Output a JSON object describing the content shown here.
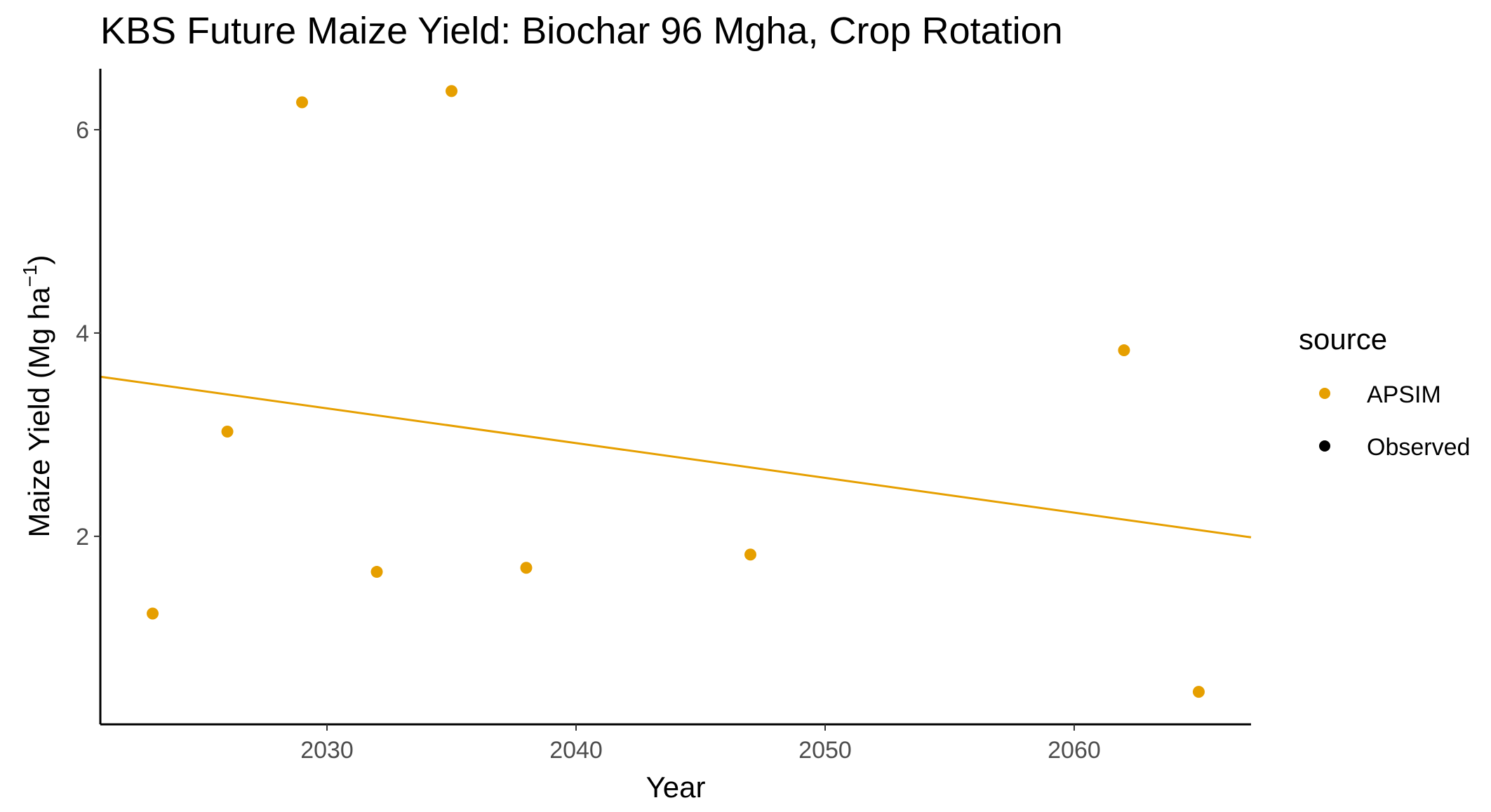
{
  "chart_data": {
    "type": "scatter",
    "title": "KBS Future Maize Yield:  Biochar 96 Mgha, Crop Rotation",
    "xlabel": "Year",
    "ylabel": "Maize Yield (Mg ha⁻¹)",
    "ylabel_parts": {
      "main": "Maize Yield (Mg ha",
      "sup": "−1",
      "close": ")"
    },
    "xlim": [
      2020.9,
      2067.1
    ],
    "ylim": [
      0.15,
      6.6
    ],
    "x_ticks": [
      2030,
      2040,
      2050,
      2060
    ],
    "y_ticks": [
      2,
      4,
      6
    ],
    "grid": false,
    "legend": {
      "title": "source",
      "position": "right",
      "entries": [
        {
          "label": "APSIM",
          "color": "#E69F00"
        },
        {
          "label": "Observed",
          "color": "#000000"
        }
      ]
    },
    "series": [
      {
        "name": "APSIM",
        "color": "#E69F00",
        "x": [
          2023,
          2026,
          2029,
          2032,
          2035,
          2038,
          2047,
          2062,
          2065
        ],
        "y": [
          1.24,
          3.03,
          6.27,
          1.65,
          6.38,
          1.69,
          1.82,
          3.83,
          0.47
        ]
      },
      {
        "name": "Observed",
        "color": "#000000",
        "x": [],
        "y": []
      }
    ],
    "trend_line": {
      "color": "#E69F00",
      "x": [
        2020.9,
        2067.1
      ],
      "y": [
        3.57,
        1.99
      ]
    }
  }
}
